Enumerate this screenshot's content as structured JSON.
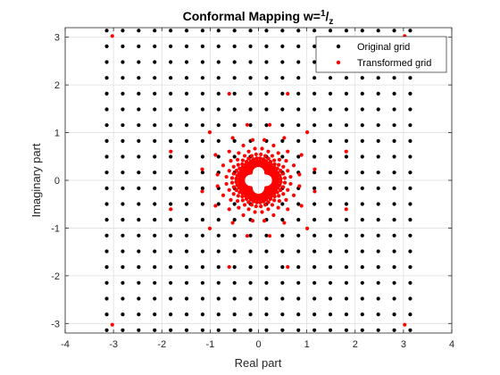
{
  "chart_data": {
    "type": "scatter",
    "title": {
      "main": "Conformal Mapping w=",
      "sup": "1",
      "slash": "/",
      "sub": "z"
    },
    "xlabel": "Real part",
    "ylabel": "Imaginary part",
    "xlim": [
      -4,
      4
    ],
    "ylim": [
      -3.2,
      3.2
    ],
    "xticks": [
      -4,
      -3,
      -2,
      -1,
      0,
      1,
      2,
      3,
      4
    ],
    "yticks": [
      -3,
      -2,
      -1,
      0,
      1,
      2,
      3
    ],
    "xtick_labels": [
      "-4",
      "-3",
      "-2",
      "-1",
      "0",
      "1",
      "2",
      "3",
      "4"
    ],
    "ytick_labels": [
      "-3",
      "-2",
      "-1",
      "0",
      "1",
      "2",
      "3"
    ],
    "grid": true,
    "legend_position": "top-right",
    "series": [
      {
        "name": "Original grid",
        "color": "#000000",
        "grid_range": [
          -3.14,
          3.14
        ],
        "grid_points_per_axis": 20
      },
      {
        "name": "Transformed grid",
        "color": "#ff0000",
        "transform": "1/z"
      }
    ]
  }
}
